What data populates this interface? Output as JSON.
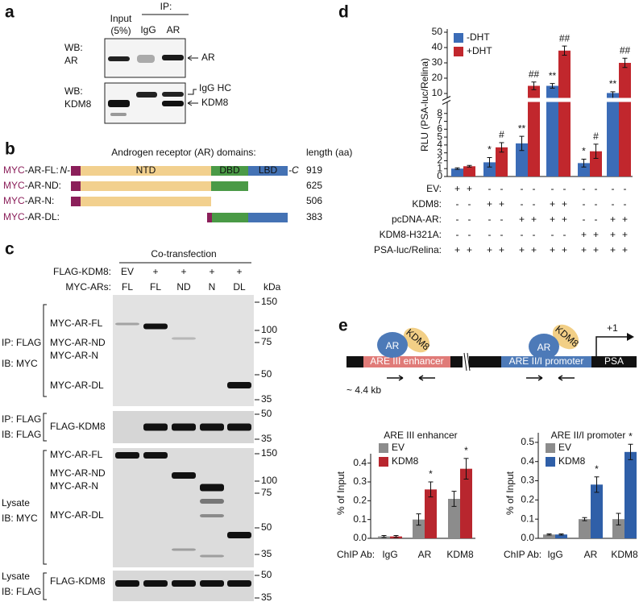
{
  "panel_a": {
    "label": "a",
    "input_label": [
      "Input",
      "(5%)"
    ],
    "ip_label": "IP:",
    "lanes": [
      "IgG",
      "AR"
    ],
    "rows": [
      {
        "wb": "WB:",
        "target": "AR",
        "arrows": [
          "AR"
        ]
      },
      {
        "wb": "WB:",
        "target": "KDM8",
        "arrows": [
          "IgG HC",
          "KDM8"
        ]
      }
    ]
  },
  "panel_b": {
    "label": "b",
    "title": "Androgen receptor (AR) domains:",
    "length_header": "length (aa)",
    "n_terminus": "N-",
    "c_terminus": "-C",
    "domains": [
      "NTD",
      "DBD",
      "LBD"
    ],
    "constructs": [
      {
        "tag": "MYC",
        "name": "-AR-FL:",
        "length": 919
      },
      {
        "tag": "MYC",
        "name": "-AR-ND:",
        "length": 625
      },
      {
        "tag": "MYC",
        "name": "-AR-N:",
        "length": 506
      },
      {
        "tag": "MYC",
        "name": "-AR-DL:",
        "length": 383
      }
    ]
  },
  "panel_c": {
    "label": "c",
    "header": "Co-transfection",
    "unit": "kDa",
    "rows": [
      {
        "label": "FLAG-KDM8:",
        "cells": [
          "EV",
          "+",
          "+",
          "+",
          "+"
        ]
      },
      {
        "label": "MYC-ARs:",
        "cells": [
          "FL",
          "FL",
          "ND",
          "N",
          "DL"
        ]
      }
    ],
    "blots": [
      {
        "method": [
          "IP: FLAG",
          "IB: MYC"
        ],
        "bands": [
          "MYC-AR-FL",
          "MYC-AR-ND",
          "MYC-AR-N",
          "MYC-AR-DL"
        ],
        "markers": [
          150,
          100,
          75,
          50,
          35
        ]
      },
      {
        "method": [
          "IP: FLAG",
          "IB: FLAG"
        ],
        "bands": [
          "FLAG-KDM8"
        ],
        "markers": [
          50,
          35
        ]
      },
      {
        "method": [
          "Lysate",
          "IB: MYC"
        ],
        "bands": [
          "MYC-AR-FL",
          "MYC-AR-ND",
          "MYC-AR-N",
          "MYC-AR-DL"
        ],
        "markers": [
          150,
          100,
          75,
          50,
          35
        ]
      },
      {
        "method": [
          "Lysate",
          "IB: FLAG"
        ],
        "bands": [
          "FLAG-KDM8"
        ],
        "markers": [
          50,
          35
        ]
      }
    ]
  },
  "panel_e_diagram": {
    "label": "e",
    "tss": "+1",
    "gene": "PSA",
    "factors": [
      "AR",
      "KDM8"
    ],
    "regions": [
      "ARE III enhancer",
      "ARE II/I promoter"
    ],
    "distance": "~ 4.4 kb"
  },
  "chart_data": [
    {
      "type": "bar",
      "label": "d",
      "ylabel": "RLU (PSA-luc/Relina)",
      "legend": "upper-left",
      "ylim_lower": [
        0,
        9
      ],
      "yticks_lower": [
        0,
        1,
        2,
        3,
        4,
        5,
        6,
        7,
        8
      ],
      "ylim_upper": [
        10,
        50
      ],
      "yticks_upper": [
        10,
        20,
        30,
        40,
        50
      ],
      "series": [
        {
          "name": "-DHT",
          "color": "#3b6cb7",
          "values": [
            1.0,
            1.8,
            4.2,
            15,
            1.7,
            10.3
          ],
          "errors": [
            0.1,
            0.6,
            0.9,
            1.5,
            0.5,
            0.8
          ],
          "significance": [
            null,
            "*",
            "**",
            "**",
            "*",
            "**"
          ],
          "significance_color": "#3b6cb7"
        },
        {
          "name": "+DHT",
          "color": "#c1272d",
          "values": [
            1.3,
            3.7,
            15,
            38,
            3.2,
            30
          ],
          "errors": [
            0.1,
            0.6,
            2.5,
            3,
            0.9,
            3
          ],
          "significance": [
            null,
            "#",
            "##",
            "##",
            "#",
            "##"
          ],
          "significance_color": "#c1272d"
        }
      ],
      "conditions": [
        {
          "label": "EV:",
          "values": [
            "+",
            "+",
            "-",
            "-",
            "-",
            "-",
            "-",
            "-",
            "-",
            "-",
            "-",
            "-"
          ]
        },
        {
          "label": "KDM8:",
          "values": [
            "-",
            "-",
            "+",
            "+",
            "-",
            "-",
            "+",
            "+",
            "-",
            "-",
            "-",
            "-"
          ]
        },
        {
          "label": "pcDNA-AR:",
          "values": [
            "-",
            "-",
            "-",
            "-",
            "+",
            "+",
            "+",
            "+",
            "-",
            "-",
            "+",
            "+"
          ]
        },
        {
          "label": "KDM8-H321A:",
          "values": [
            "-",
            "-",
            "-",
            "-",
            "-",
            "-",
            "-",
            "-",
            "+",
            "+",
            "+",
            "+"
          ]
        },
        {
          "label": "PSA-luc/Relina:",
          "values": [
            "+",
            "+",
            "+",
            "+",
            "+",
            "+",
            "+",
            "+",
            "+",
            "+",
            "+",
            "+"
          ]
        }
      ]
    },
    {
      "type": "bar",
      "title": "ARE III enhancer",
      "ylabel": "% of Input",
      "xlabel": "ChIP Ab:",
      "legend": "upper-left",
      "categories": [
        "IgG",
        "AR",
        "KDM8"
      ],
      "ylim": [
        0,
        0.45
      ],
      "yticks": [
        {
          "value": 0,
          "label": "0.0"
        },
        0.1,
        0.2,
        0.3,
        0.4
      ],
      "series": [
        {
          "name": "EV",
          "color": "#8c8c8c",
          "values": [
            0.01,
            0.1,
            0.21
          ],
          "errors": [
            0.005,
            0.03,
            0.04
          ],
          "significance": [
            null,
            null,
            null
          ],
          "significance_color": "#111111"
        },
        {
          "name": "KDM8",
          "color": "#b8262e",
          "values": [
            0.01,
            0.26,
            0.37
          ],
          "errors": [
            0.005,
            0.04,
            0.055
          ],
          "significance": [
            null,
            "*",
            "*"
          ],
          "significance_color": "#111111"
        }
      ]
    },
    {
      "type": "bar",
      "title": "ARE II/I promoter",
      "ylabel": "% of Input",
      "xlabel": "ChIP Ab:",
      "legend": "upper-left",
      "categories": [
        "IgG",
        "AR",
        "KDM8"
      ],
      "ylim": [
        0,
        0.55
      ],
      "yticks": [
        {
          "value": 0,
          "label": "0.0"
        },
        0.1,
        0.2,
        0.3,
        0.4,
        0.5
      ],
      "series": [
        {
          "name": "EV",
          "color": "#8c8c8c",
          "values": [
            0.02,
            0.1,
            0.1
          ],
          "errors": [
            0.003,
            0.008,
            0.03
          ],
          "significance": [
            null,
            null,
            null
          ],
          "significance_color": "#111111"
        },
        {
          "name": "KDM8",
          "color": "#2f5fa8",
          "values": [
            0.02,
            0.28,
            0.45
          ],
          "errors": [
            0.003,
            0.04,
            0.04
          ],
          "significance": [
            null,
            "*",
            "*"
          ],
          "significance_color": "#111111"
        }
      ]
    }
  ]
}
